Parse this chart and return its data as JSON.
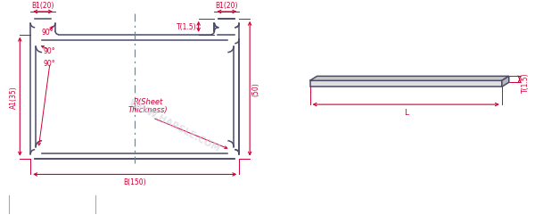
{
  "bg_color": "#ffffff",
  "line_color": "#4a4a6a",
  "dim_color": "#cc0033",
  "center_line_color": "#00aacc",
  "watermark_color": "#d0d0e0",
  "watermark_text": "WWW.HARSLE.COM",
  "r_text_line1": "R(Sheet",
  "r_text_line2": "Thickness)",
  "label_B1_left": "B1(20",
  "label_B1_right": "B1(20",
  "label_T": "T(1.5)",
  "label_A1": "A1(35)",
  "label_50": "(50)",
  "label_B": "B(150)",
  "label_90_1": "90°",
  "label_90_2": "90°",
  "label_90_3": "90°",
  "label_L": "L",
  "label_T2": "T(1.5)",
  "fs": 5.5
}
